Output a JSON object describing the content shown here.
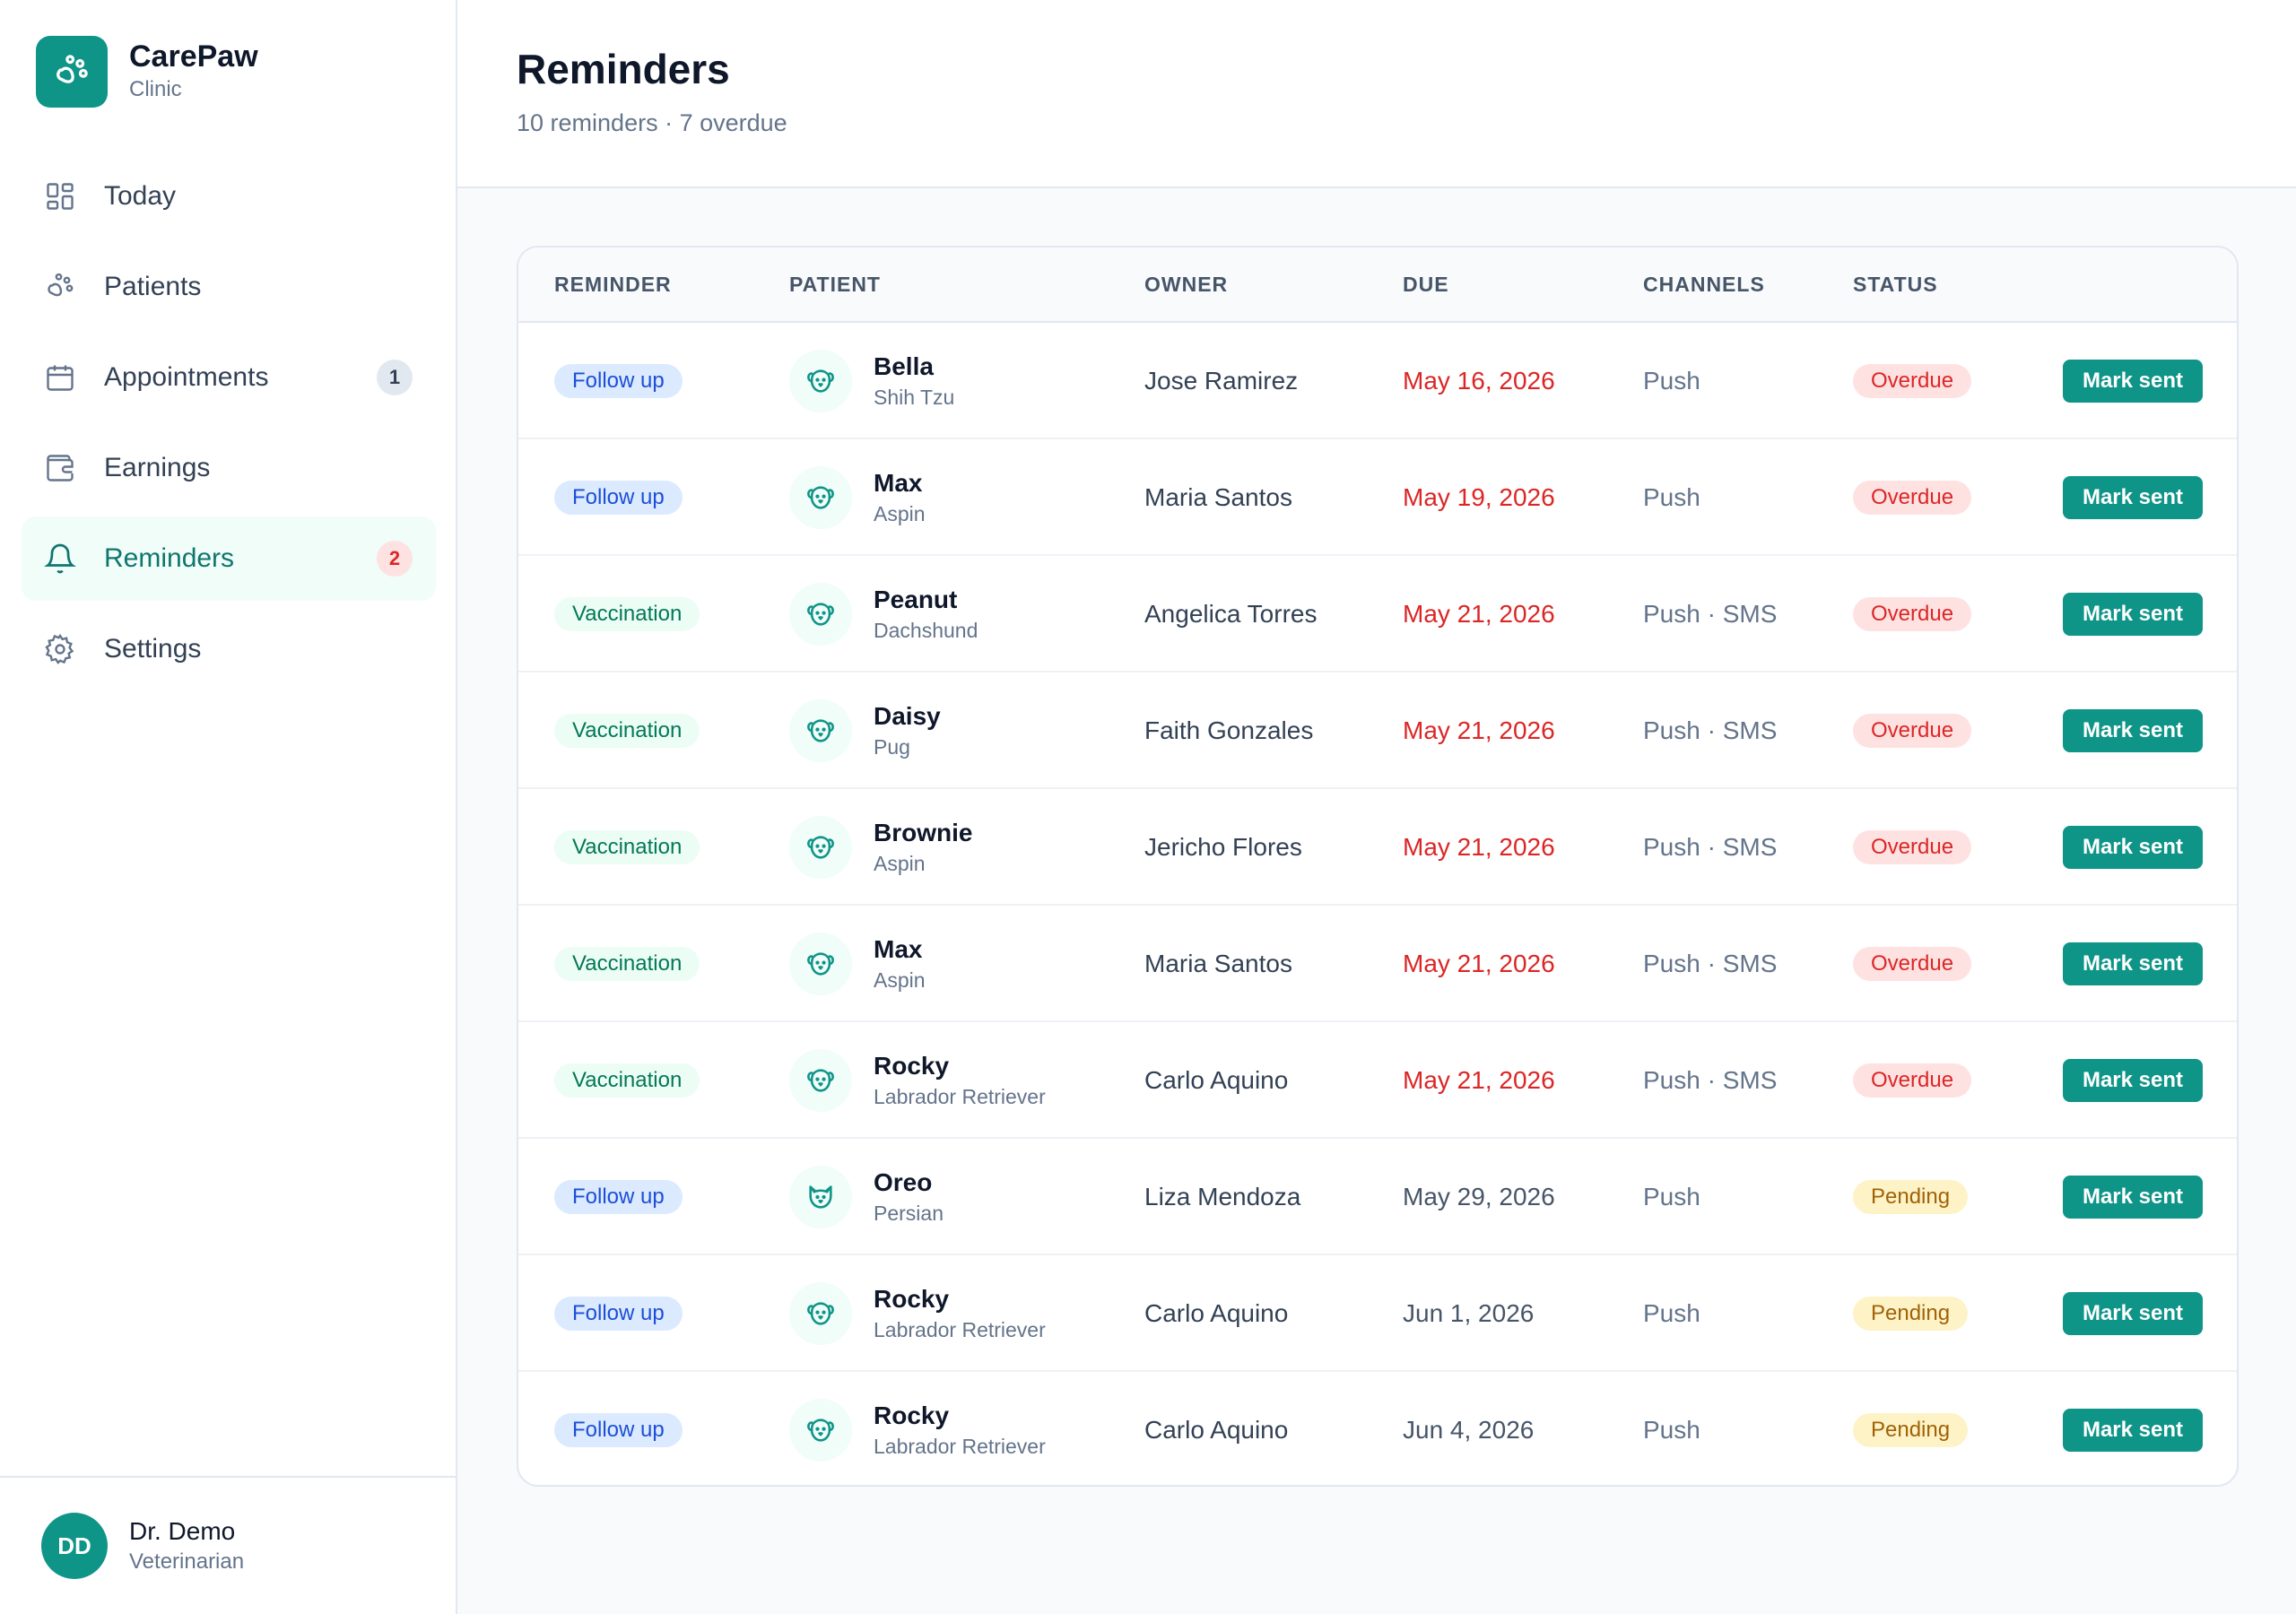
{
  "brand": {
    "name": "CarePaw",
    "subtitle": "Clinic"
  },
  "nav": [
    {
      "label": "Today",
      "icon": "grid-icon",
      "badge": null,
      "active": false
    },
    {
      "label": "Patients",
      "icon": "paw-icon",
      "badge": null,
      "active": false
    },
    {
      "label": "Appointments",
      "icon": "calendar-icon",
      "badge": "1",
      "active": false
    },
    {
      "label": "Earnings",
      "icon": "wallet-icon",
      "badge": null,
      "active": false
    },
    {
      "label": "Reminders",
      "icon": "bell-icon",
      "badge": "2",
      "active": true
    },
    {
      "label": "Settings",
      "icon": "gear-icon",
      "badge": null,
      "active": false
    }
  ],
  "user": {
    "initials": "DD",
    "name": "Dr. Demo",
    "role": "Veterinarian"
  },
  "page": {
    "title": "Reminders",
    "subtitle": "10 reminders · 7 overdue"
  },
  "table": {
    "columns": [
      "REMINDER",
      "PATIENT",
      "OWNER",
      "DUE",
      "CHANNELS",
      "STATUS"
    ],
    "action_label": "Mark sent",
    "rows": [
      {
        "type": "Follow up",
        "pet": "Bella",
        "breed": "Shih Tzu",
        "owner": "Jose Ramirez",
        "due": "May 16, 2026",
        "channels": "Push",
        "status": "Overdue",
        "pet_icon": "dog-icon"
      },
      {
        "type": "Follow up",
        "pet": "Max",
        "breed": "Aspin",
        "owner": "Maria Santos",
        "due": "May 19, 2026",
        "channels": "Push",
        "status": "Overdue",
        "pet_icon": "dog-icon"
      },
      {
        "type": "Vaccination",
        "pet": "Peanut",
        "breed": "Dachshund",
        "owner": "Angelica Torres",
        "due": "May 21, 2026",
        "channels": "Push · SMS",
        "status": "Overdue",
        "pet_icon": "dog-icon"
      },
      {
        "type": "Vaccination",
        "pet": "Daisy",
        "breed": "Pug",
        "owner": "Faith Gonzales",
        "due": "May 21, 2026",
        "channels": "Push · SMS",
        "status": "Overdue",
        "pet_icon": "dog-icon"
      },
      {
        "type": "Vaccination",
        "pet": "Brownie",
        "breed": "Aspin",
        "owner": "Jericho Flores",
        "due": "May 21, 2026",
        "channels": "Push · SMS",
        "status": "Overdue",
        "pet_icon": "dog-icon"
      },
      {
        "type": "Vaccination",
        "pet": "Max",
        "breed": "Aspin",
        "owner": "Maria Santos",
        "due": "May 21, 2026",
        "channels": "Push · SMS",
        "status": "Overdue",
        "pet_icon": "dog-icon"
      },
      {
        "type": "Vaccination",
        "pet": "Rocky",
        "breed": "Labrador Retriever",
        "owner": "Carlo Aquino",
        "due": "May 21, 2026",
        "channels": "Push · SMS",
        "status": "Overdue",
        "pet_icon": "dog-icon"
      },
      {
        "type": "Follow up",
        "pet": "Oreo",
        "breed": "Persian",
        "owner": "Liza Mendoza",
        "due": "May 29, 2026",
        "channels": "Push",
        "status": "Pending",
        "pet_icon": "cat-icon"
      },
      {
        "type": "Follow up",
        "pet": "Rocky",
        "breed": "Labrador Retriever",
        "owner": "Carlo Aquino",
        "due": "Jun 1, 2026",
        "channels": "Push",
        "status": "Pending",
        "pet_icon": "dog-icon"
      },
      {
        "type": "Follow up",
        "pet": "Rocky",
        "breed": "Labrador Retriever",
        "owner": "Carlo Aquino",
        "due": "Jun 4, 2026",
        "channels": "Push",
        "status": "Pending",
        "pet_icon": "dog-icon"
      }
    ]
  },
  "colors": {
    "accent": "#0f9488",
    "overdue": "#dc2626",
    "pending": "#a16207"
  }
}
